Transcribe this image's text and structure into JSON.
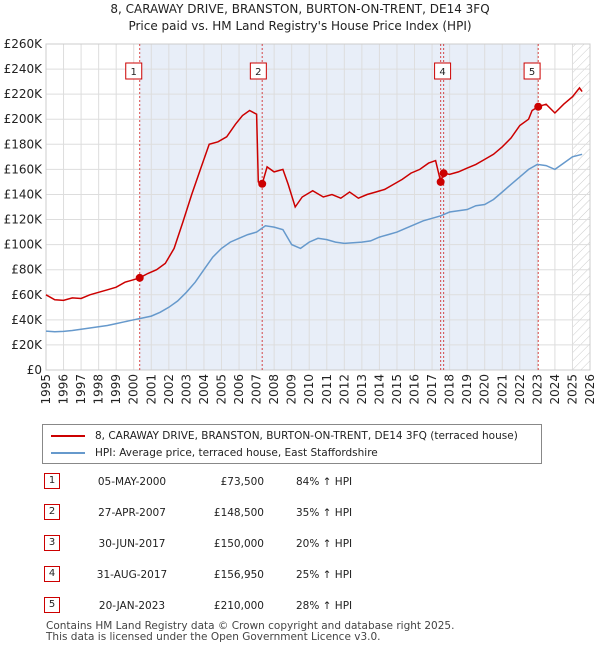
{
  "chart_data": {
    "type": "line",
    "title": "8, CARAWAY DRIVE, BRANSTON, BURTON-ON-TRENT, DE14 3FQ",
    "subtitle": "Price paid vs. HM Land Registry's House Price Index (HPI)",
    "x_ticks": [
      "1995",
      "1996",
      "1997",
      "1998",
      "1999",
      "2000",
      "2001",
      "2002",
      "2003",
      "2004",
      "2005",
      "2006",
      "2007",
      "2008",
      "2009",
      "2010",
      "2011",
      "2012",
      "2013",
      "2014",
      "2015",
      "2016",
      "2017",
      "2018",
      "2019",
      "2020",
      "2021",
      "2022",
      "2023",
      "2024",
      "2025",
      "2026"
    ],
    "y_ticks": [
      "£0",
      "£20K",
      "£40K",
      "£60K",
      "£80K",
      "£100K",
      "£120K",
      "£140K",
      "£160K",
      "£180K",
      "£200K",
      "£220K",
      "£240K",
      "£260K"
    ],
    "xlim": [
      1995,
      2026
    ],
    "ylim": [
      0,
      260000
    ],
    "series": [
      {
        "name": "8, CARAWAY DRIVE, BRANSTON, BURTON-ON-TRENT, DE14 3FQ (terraced house)",
        "color": "#cc0000",
        "points": [
          [
            1995.0,
            60000
          ],
          [
            1995.5,
            56000
          ],
          [
            1996.0,
            55500
          ],
          [
            1996.5,
            57500
          ],
          [
            1997.0,
            57000
          ],
          [
            1997.5,
            60000
          ],
          [
            1998.0,
            62000
          ],
          [
            1998.5,
            64000
          ],
          [
            1999.0,
            66000
          ],
          [
            1999.5,
            70000
          ],
          [
            2000.0,
            72000
          ],
          [
            2000.34,
            73500
          ],
          [
            2000.8,
            77000
          ],
          [
            2001.3,
            80000
          ],
          [
            2001.8,
            85000
          ],
          [
            2002.3,
            97000
          ],
          [
            2002.8,
            118000
          ],
          [
            2003.3,
            140000
          ],
          [
            2003.8,
            160000
          ],
          [
            2004.3,
            180000
          ],
          [
            2004.8,
            182000
          ],
          [
            2005.3,
            186000
          ],
          [
            2005.8,
            196000
          ],
          [
            2006.2,
            203000
          ],
          [
            2006.6,
            207000
          ],
          [
            2007.0,
            204000
          ],
          [
            2007.1,
            150000
          ],
          [
            2007.32,
            148500
          ],
          [
            2007.6,
            162000
          ],
          [
            2008.0,
            158000
          ],
          [
            2008.5,
            160000
          ],
          [
            2008.8,
            148000
          ],
          [
            2009.2,
            130000
          ],
          [
            2009.6,
            138000
          ],
          [
            2010.2,
            143000
          ],
          [
            2010.8,
            138000
          ],
          [
            2011.3,
            140000
          ],
          [
            2011.8,
            137000
          ],
          [
            2012.3,
            142000
          ],
          [
            2012.8,
            137000
          ],
          [
            2013.3,
            140000
          ],
          [
            2013.8,
            142000
          ],
          [
            2014.3,
            144000
          ],
          [
            2014.8,
            148000
          ],
          [
            2015.3,
            152000
          ],
          [
            2015.8,
            157000
          ],
          [
            2016.3,
            160000
          ],
          [
            2016.8,
            165000
          ],
          [
            2017.2,
            167000
          ],
          [
            2017.49,
            150000
          ],
          [
            2017.66,
            156950
          ],
          [
            2018.0,
            156000
          ],
          [
            2018.5,
            158000
          ],
          [
            2019.0,
            161000
          ],
          [
            2019.5,
            164000
          ],
          [
            2020.0,
            168000
          ],
          [
            2020.5,
            172000
          ],
          [
            2021.0,
            178000
          ],
          [
            2021.5,
            185000
          ],
          [
            2022.0,
            195000
          ],
          [
            2022.5,
            200000
          ],
          [
            2022.7,
            207000
          ],
          [
            2023.05,
            210000
          ],
          [
            2023.5,
            212000
          ],
          [
            2024.0,
            205000
          ],
          [
            2024.5,
            212000
          ],
          [
            2025.0,
            218000
          ],
          [
            2025.4,
            225000
          ],
          [
            2025.55,
            222000
          ]
        ]
      },
      {
        "name": "HPI: Average price, terraced house, East Staffordshire",
        "color": "#6699cc",
        "points": [
          [
            1995.0,
            31000
          ],
          [
            1995.5,
            30500
          ],
          [
            1996.0,
            30800
          ],
          [
            1996.5,
            31500
          ],
          [
            1997.0,
            32500
          ],
          [
            1997.5,
            33500
          ],
          [
            1998.0,
            34500
          ],
          [
            1998.5,
            35500
          ],
          [
            1999.0,
            37000
          ],
          [
            1999.5,
            38500
          ],
          [
            2000.0,
            40000
          ],
          [
            2000.5,
            41500
          ],
          [
            2001.0,
            43000
          ],
          [
            2001.5,
            46000
          ],
          [
            2002.0,
            50000
          ],
          [
            2002.5,
            55000
          ],
          [
            2003.0,
            62000
          ],
          [
            2003.5,
            70000
          ],
          [
            2004.0,
            80000
          ],
          [
            2004.5,
            90000
          ],
          [
            2005.0,
            97000
          ],
          [
            2005.5,
            102000
          ],
          [
            2006.0,
            105000
          ],
          [
            2006.5,
            108000
          ],
          [
            2007.0,
            110000
          ],
          [
            2007.5,
            115000
          ],
          [
            2008.0,
            114000
          ],
          [
            2008.5,
            112000
          ],
          [
            2009.0,
            100000
          ],
          [
            2009.5,
            97000
          ],
          [
            2010.0,
            102000
          ],
          [
            2010.5,
            105000
          ],
          [
            2011.0,
            104000
          ],
          [
            2011.5,
            102000
          ],
          [
            2012.0,
            101000
          ],
          [
            2012.5,
            101500
          ],
          [
            2013.0,
            102000
          ],
          [
            2013.5,
            103000
          ],
          [
            2014.0,
            106000
          ],
          [
            2014.5,
            108000
          ],
          [
            2015.0,
            110000
          ],
          [
            2015.5,
            113000
          ],
          [
            2016.0,
            116000
          ],
          [
            2016.5,
            119000
          ],
          [
            2017.0,
            121000
          ],
          [
            2017.5,
            123000
          ],
          [
            2018.0,
            126000
          ],
          [
            2018.5,
            127000
          ],
          [
            2019.0,
            128000
          ],
          [
            2019.5,
            131000
          ],
          [
            2020.0,
            132000
          ],
          [
            2020.5,
            136000
          ],
          [
            2021.0,
            142000
          ],
          [
            2021.5,
            148000
          ],
          [
            2022.0,
            154000
          ],
          [
            2022.5,
            160000
          ],
          [
            2023.0,
            164000
          ],
          [
            2023.5,
            163000
          ],
          [
            2024.0,
            160000
          ],
          [
            2024.5,
            165000
          ],
          [
            2025.0,
            170000
          ],
          [
            2025.55,
            172000
          ]
        ]
      }
    ],
    "sales": [
      {
        "num": "1",
        "x": 2000.34,
        "price": 73500
      },
      {
        "num": "2",
        "x": 2007.32,
        "price": 148500
      },
      {
        "num": "3",
        "x": 2017.49,
        "price": 150000
      },
      {
        "num": "4",
        "x": 2017.66,
        "price": 156950
      },
      {
        "num": "5",
        "x": 2023.05,
        "price": 210000
      }
    ],
    "marker_labels": [
      "1",
      "2",
      "4",
      "5"
    ],
    "legend_position": "bottom",
    "colors": {
      "price": "#cc0000",
      "hpi": "#6699cc",
      "grid": "#dddddd",
      "shade": "#e8eef8",
      "hatch": "#cccccc"
    }
  },
  "legend": {
    "price_label": "8, CARAWAY DRIVE, BRANSTON, BURTON-ON-TRENT, DE14 3FQ (terraced house)",
    "hpi_label": "HPI: Average price, terraced house, East Staffordshire"
  },
  "sales_table": [
    {
      "num": "1",
      "date": "05-MAY-2000",
      "price": "£73,500",
      "hpi": "84% ↑ HPI"
    },
    {
      "num": "2",
      "date": "27-APR-2007",
      "price": "£148,500",
      "hpi": "35% ↑ HPI"
    },
    {
      "num": "3",
      "date": "30-JUN-2017",
      "price": "£150,000",
      "hpi": "20% ↑ HPI"
    },
    {
      "num": "4",
      "date": "31-AUG-2017",
      "price": "£156,950",
      "hpi": "25% ↑ HPI"
    },
    {
      "num": "5",
      "date": "20-JAN-2023",
      "price": "£210,000",
      "hpi": "28% ↑ HPI"
    }
  ],
  "footer": {
    "line1": "Contains HM Land Registry data © Crown copyright and database right 2025.",
    "line2": "This data is licensed under the Open Government Licence v3.0."
  }
}
